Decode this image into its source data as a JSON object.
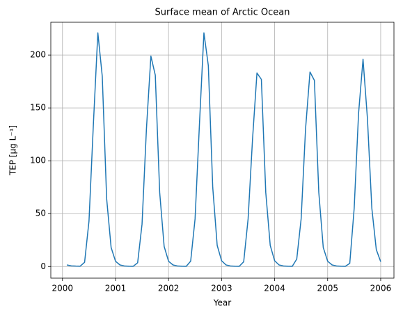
{
  "chart_data": {
    "type": "line",
    "title": "Surface mean of Arctic Ocean",
    "xlabel": "Year",
    "ylabel": "TEP [μg L⁻¹]",
    "x": [
      2000.083,
      2000.167,
      2000.25,
      2000.333,
      2000.417,
      2000.5,
      2000.583,
      2000.667,
      2000.75,
      2000.833,
      2000.917,
      2001,
      2001.083,
      2001.167,
      2001.25,
      2001.333,
      2001.417,
      2001.5,
      2001.583,
      2001.667,
      2001.75,
      2001.833,
      2001.917,
      2002,
      2002.083,
      2002.167,
      2002.25,
      2002.333,
      2002.417,
      2002.5,
      2002.583,
      2002.667,
      2002.75,
      2002.833,
      2002.917,
      2003,
      2003.083,
      2003.167,
      2003.25,
      2003.333,
      2003.417,
      2003.5,
      2003.583,
      2003.667,
      2003.75,
      2003.833,
      2003.917,
      2004,
      2004.083,
      2004.167,
      2004.25,
      2004.333,
      2004.417,
      2004.5,
      2004.583,
      2004.667,
      2004.75,
      2004.833,
      2004.917,
      2005,
      2005.083,
      2005.167,
      2005.25,
      2005.333,
      2005.417,
      2005.5,
      2005.583,
      2005.667,
      2005.75,
      2005.833,
      2005.917,
      2006
    ],
    "values": [
      1.5,
      0.6,
      0.4,
      0.3,
      4,
      43,
      135,
      221,
      180,
      64,
      18,
      5,
      1.5,
      0.5,
      0.3,
      0.2,
      3.5,
      40,
      130,
      199,
      181,
      70,
      19,
      5,
      1.5,
      0.5,
      0.3,
      0.2,
      5,
      45,
      135,
      221,
      190,
      75,
      20,
      5.5,
      1.5,
      0.5,
      0.3,
      0.2,
      4.5,
      45,
      120,
      183,
      177,
      70,
      20,
      5.5,
      1.5,
      0.5,
      0.3,
      0.2,
      7,
      45,
      130,
      184,
      176,
      70,
      18,
      5,
      1.5,
      0.5,
      0.3,
      0.2,
      3,
      55,
      145,
      196,
      140,
      55,
      16,
      4.5
    ],
    "color": "#1f77b4",
    "xlim": [
      1999.78,
      2006.25
    ],
    "xticks": [
      2000,
      2001,
      2002,
      2003,
      2004,
      2005,
      2006
    ],
    "ylim": [
      -11,
      231
    ],
    "yticks": [
      0,
      50,
      100,
      150,
      200
    ],
    "grid": true
  }
}
